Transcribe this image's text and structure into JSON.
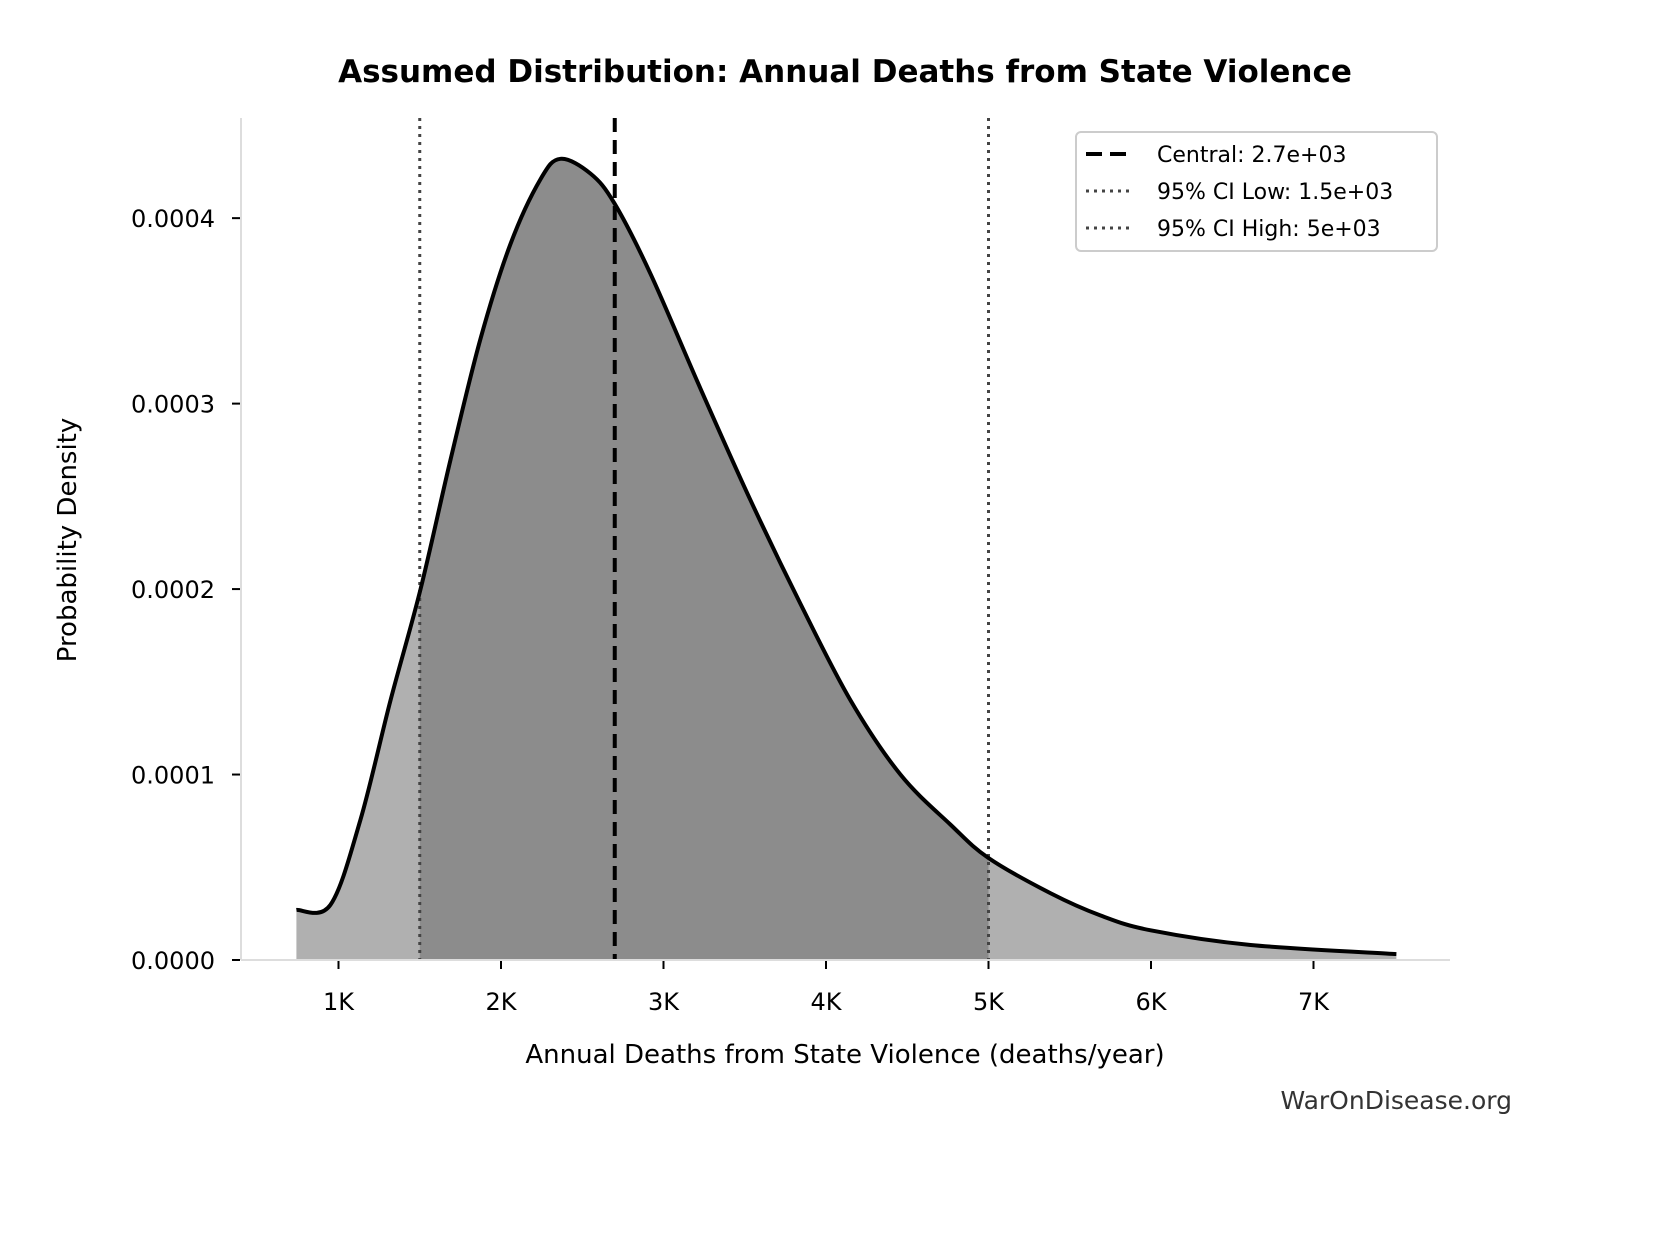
{
  "chart_data": {
    "type": "area",
    "title": "Assumed Distribution: Annual Deaths from State Violence",
    "xlabel": "Annual Deaths from State Violence (deaths/year)",
    "ylabel": "Probability Density",
    "xlim": [
      400,
      7840
    ],
    "ylim": [
      0,
      0.000454
    ],
    "x_ticks": [
      {
        "value": 1000,
        "label": "1K"
      },
      {
        "value": 2000,
        "label": "2K"
      },
      {
        "value": 3000,
        "label": "3K"
      },
      {
        "value": 4000,
        "label": "4K"
      },
      {
        "value": 5000,
        "label": "5K"
      },
      {
        "value": 6000,
        "label": "6K"
      },
      {
        "value": 7000,
        "label": "7K"
      }
    ],
    "y_ticks": [
      {
        "value": 0,
        "label": "0.0000"
      },
      {
        "value": 0.0001,
        "label": "0.0001"
      },
      {
        "value": 0.0002,
        "label": "0.0002"
      },
      {
        "value": 0.0003,
        "label": "0.0003"
      },
      {
        "value": 0.0004,
        "label": "0.0004"
      }
    ],
    "grid": false,
    "legend_position": "top-right",
    "series": [
      {
        "x": [
          741,
          950,
          1135,
          1320,
          1505,
          1690,
          1874,
          2058,
          2243,
          2366,
          2551,
          2698,
          2920,
          3228,
          3535,
          3843,
          4151,
          4458,
          4766,
          5000,
          5382,
          5690,
          5998,
          6613,
          7510
        ],
        "y": [
          2.7e-05,
          2.97e-05,
          7.56e-05,
          0.00014,
          0.0002,
          0.00027,
          0.000335,
          0.000386,
          0.000421,
          0.000432,
          0.000424,
          0.000408,
          0.00037,
          0.000308,
          0.000248,
          0.000192,
          0.00014,
          0.0001,
          7.3e-05,
          5.5e-05,
          3.6e-05,
          2.4e-05,
          1.6e-05,
          8.1e-06,
          3.2e-06
        ],
        "line_color": "#000000",
        "fill_color": "#b0b0b0",
        "ci_fill_color": "#8c8c8c"
      }
    ],
    "reference_lines": [
      {
        "value": 2700,
        "label": "Central: 2.7e+03",
        "style": "dashed",
        "color": "#000000"
      },
      {
        "value": 1500,
        "label": "95% CI Low: 1.5e+03",
        "style": "dotted",
        "color": "#444444"
      },
      {
        "value": 5000,
        "label": "95% CI High: 5e+03",
        "style": "dotted",
        "color": "#444444"
      }
    ]
  },
  "watermark": "WarOnDisease.org"
}
